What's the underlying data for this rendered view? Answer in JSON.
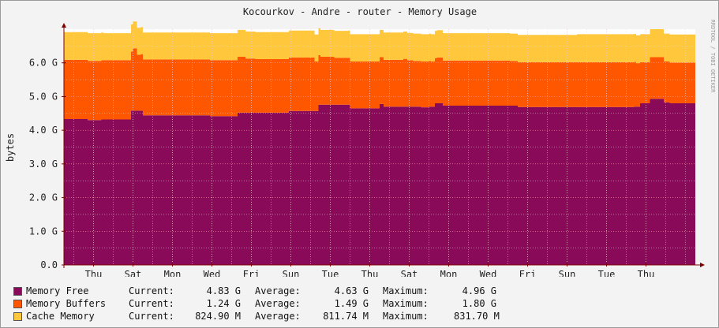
{
  "chart_data": {
    "type": "area",
    "title": "Kocourkov - Andre - router - Memory Usage",
    "ylabel": "bytes",
    "watermark": "RRDTOOL / TOBI OETIKER",
    "ylim": [
      0,
      7
    ],
    "y_ticks": [
      {
        "value": 0,
        "label": "0.0"
      },
      {
        "value": 1,
        "label": "1.0 G"
      },
      {
        "value": 2,
        "label": "2.0 G"
      },
      {
        "value": 3,
        "label": "3.0 G"
      },
      {
        "value": 4,
        "label": "4.0 G"
      },
      {
        "value": 5,
        "label": "5.0 G"
      },
      {
        "value": 6,
        "label": "6.0 G"
      }
    ],
    "x_range": [
      0,
      16
    ],
    "x_ticks": [
      {
        "x": 0.75,
        "label": "Thu"
      },
      {
        "x": 1.75,
        "label": "Sat"
      },
      {
        "x": 2.75,
        "label": "Mon"
      },
      {
        "x": 3.75,
        "label": "Wed"
      },
      {
        "x": 4.75,
        "label": "Fri"
      },
      {
        "x": 5.75,
        "label": "Sun"
      },
      {
        "x": 6.75,
        "label": "Tue"
      },
      {
        "x": 7.75,
        "label": "Thu"
      },
      {
        "x": 8.75,
        "label": "Sat"
      },
      {
        "x": 9.75,
        "label": "Mon"
      },
      {
        "x": 10.75,
        "label": "Wed"
      },
      {
        "x": 11.75,
        "label": "Fri"
      },
      {
        "x": 12.75,
        "label": "Sun"
      },
      {
        "x": 13.75,
        "label": "Tue"
      },
      {
        "x": 14.75,
        "label": "Thu"
      }
    ],
    "colors": {
      "canvas": "#ffffff",
      "grid": "#ff9b9b",
      "axis": "#7f0000",
      "text": "#222222"
    },
    "series": [
      {
        "name": "Memory Free",
        "color": "#8a0a5a",
        "x": [
          0,
          0.55,
          0.6,
          0.75,
          0.95,
          1.45,
          1.7,
          1.85,
          2.0,
          3.5,
          3.7,
          4.3,
          4.4,
          4.85,
          5.0,
          5.7,
          6.3,
          6.45,
          6.85,
          7.25,
          7.9,
          8.0,
          8.1,
          8.9,
          9.05,
          9.25,
          9.4,
          9.6,
          11.4,
          11.5,
          14.35,
          14.45,
          14.6,
          14.85,
          15.2,
          15.35,
          16
        ],
        "values": [
          4.33,
          4.33,
          4.3,
          4.3,
          4.32,
          4.32,
          4.58,
          4.58,
          4.44,
          4.44,
          4.42,
          4.42,
          4.52,
          4.52,
          4.52,
          4.57,
          4.57,
          4.76,
          4.76,
          4.65,
          4.65,
          4.78,
          4.7,
          4.7,
          4.68,
          4.7,
          4.8,
          4.73,
          4.73,
          4.69,
          4.69,
          4.7,
          4.8,
          4.93,
          4.83,
          4.8,
          4.83
        ]
      },
      {
        "name": "Memory Buffers",
        "color": "#ff5700",
        "x": [
          0,
          1.75,
          1.85,
          1.95,
          2.0,
          2.75,
          2.95,
          4.45,
          4.6,
          4.85,
          6.35,
          6.5,
          6.85,
          8.6,
          8.7,
          8.85,
          9.3,
          9.45,
          9.6,
          11.3,
          14.5,
          14.6,
          14.85,
          15.1,
          15.2,
          16
        ],
        "values": [
          1.76,
          1.85,
          1.66,
          1.68,
          1.66,
          1.66,
          1.66,
          1.66,
          1.61,
          1.59,
          1.47,
          1.42,
          1.39,
          1.42,
          1.38,
          1.36,
          1.34,
          1.36,
          1.34,
          1.33,
          1.29,
          1.22,
          1.24,
          1.24,
          1.21,
          1.24
        ]
      },
      {
        "name": "Cache Memory",
        "color": "#ffc73b",
        "x": [
          0,
          0.8,
          1.0,
          7.0,
          7.2,
          12.8,
          13.0,
          16
        ],
        "values": [
          0.82,
          0.82,
          0.8,
          0.8,
          0.81,
          0.81,
          0.83,
          0.83
        ]
      }
    ]
  },
  "legend": {
    "rows": [
      {
        "name": "Memory Free",
        "current_label": "Current:",
        "current": "4.83 G",
        "average_label": "Average:",
        "average": "4.63 G",
        "maximum_label": "Maximum:",
        "maximum": "4.96 G"
      },
      {
        "name": "Memory Buffers",
        "current_label": "Current:",
        "current": "1.24 G",
        "average_label": "Average:",
        "average": "1.49 G",
        "maximum_label": "Maximum:",
        "maximum": "1.80 G"
      },
      {
        "name": "Cache Memory",
        "current_label": "Current:",
        "current": "824.90 M",
        "average_label": "Average:",
        "average": "811.74 M",
        "maximum_label": "Maximum:",
        "maximum": "831.70 M"
      }
    ]
  }
}
